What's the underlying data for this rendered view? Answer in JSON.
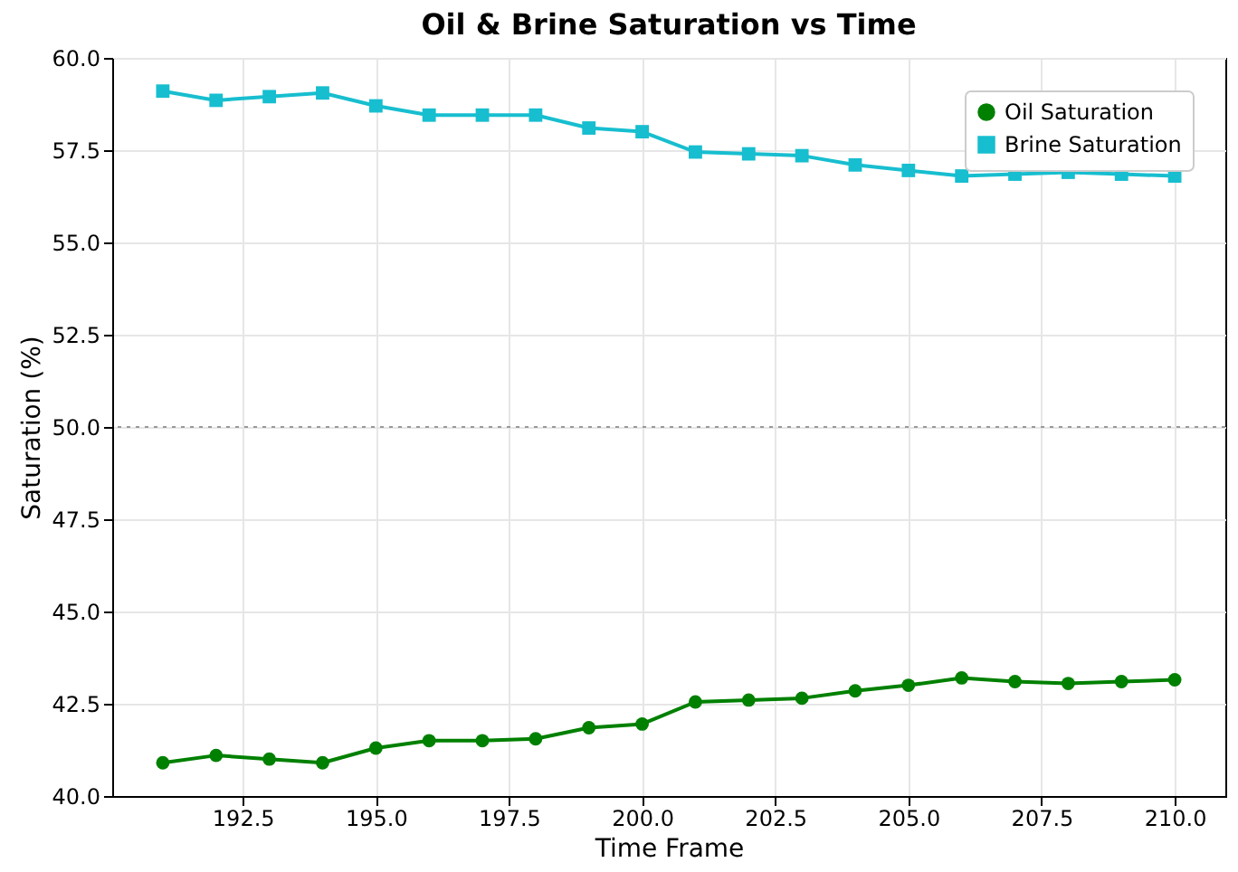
{
  "chart_data": {
    "type": "line",
    "title": "Oil & Brine Saturation vs Time",
    "xlabel": "Time Frame",
    "ylabel": "Saturation (%)",
    "x": [
      191,
      192,
      193,
      194,
      195,
      196,
      197,
      198,
      199,
      200,
      201,
      202,
      203,
      204,
      205,
      206,
      207,
      208,
      209,
      210
    ],
    "series": [
      {
        "name": "Oil Saturation",
        "color": "#008000",
        "marker": "circle",
        "values": [
          40.9,
          41.1,
          41.0,
          40.9,
          41.3,
          41.5,
          41.5,
          41.55,
          41.85,
          41.95,
          42.55,
          42.6,
          42.65,
          42.85,
          43.0,
          43.2,
          43.1,
          43.05,
          43.1,
          43.15
        ]
      },
      {
        "name": "Brine Saturation",
        "color": "#17becf",
        "marker": "square",
        "values": [
          59.1,
          58.85,
          58.95,
          59.05,
          58.7,
          58.45,
          58.45,
          58.45,
          58.1,
          58.0,
          57.45,
          57.4,
          57.35,
          57.1,
          56.95,
          56.8,
          56.85,
          56.9,
          56.85,
          56.8
        ]
      }
    ],
    "xlim": [
      190.05,
      210.95
    ],
    "xticks": [
      {
        "value": 192.5,
        "label": "192.5"
      },
      {
        "value": 195,
        "label": "195.0"
      },
      {
        "value": 197.5,
        "label": "197.5"
      },
      {
        "value": 200,
        "label": "200.0"
      },
      {
        "value": 202.5,
        "label": "202.5"
      },
      {
        "value": 205,
        "label": "205.0"
      },
      {
        "value": 207.5,
        "label": "207.5"
      },
      {
        "value": 210,
        "label": "210.0"
      }
    ],
    "ylim": [
      40,
      60
    ],
    "yticks": [
      {
        "value": 40,
        "label": "40.0"
      },
      {
        "value": 42.5,
        "label": "42.5"
      },
      {
        "value": 45,
        "label": "45.0"
      },
      {
        "value": 47.5,
        "label": "47.5"
      },
      {
        "value": 50,
        "label": "50.0"
      },
      {
        "value": 52.5,
        "label": "52.5"
      },
      {
        "value": 55,
        "label": "55.0"
      },
      {
        "value": 57.5,
        "label": "57.5"
      },
      {
        "value": 60,
        "label": "60.0"
      }
    ],
    "ref_lines": [
      {
        "axis": "y",
        "value": 50,
        "color": "#999999",
        "line_style": "dotted"
      }
    ],
    "grid": true,
    "legend": "top right",
    "line_style": "solid"
  }
}
